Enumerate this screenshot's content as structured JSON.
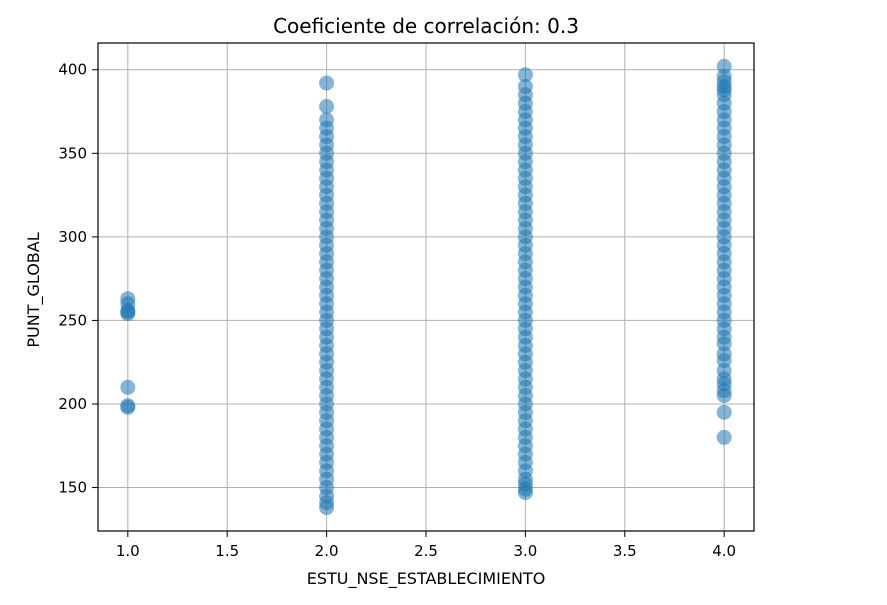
{
  "chart_data": {
    "type": "scatter",
    "title": "Coeficiente de correlación: 0.3",
    "xlabel": "ESTU_NSE_ESTABLECIMIENTO",
    "ylabel": "PUNT_GLOBAL",
    "xlim": [
      0.85,
      4.15
    ],
    "ylim": [
      124,
      416
    ],
    "xticks": [
      1.0,
      1.5,
      2.0,
      2.5,
      3.0,
      3.5,
      4.0
    ],
    "xtick_labels": [
      "1.0",
      "1.5",
      "2.0",
      "2.5",
      "3.0",
      "3.5",
      "4.0"
    ],
    "yticks": [
      150,
      200,
      250,
      300,
      350,
      400
    ],
    "ytick_labels": [
      "150",
      "200",
      "250",
      "300",
      "350",
      "400"
    ],
    "grid": true,
    "marker_color": "#1f77b4",
    "marker_alpha": 0.55,
    "series": [
      {
        "x": [
          1.0,
          1.0,
          1.0,
          1.0,
          1.0,
          1.0,
          1.0,
          1.0
        ],
        "y": [
          198,
          199,
          210,
          254,
          255,
          256,
          260,
          263
        ]
      },
      {
        "x": [
          2.0,
          2.0,
          2.0,
          2.0,
          2.0,
          2.0,
          2.0,
          2.0,
          2.0,
          2.0,
          2.0,
          2.0,
          2.0,
          2.0,
          2.0,
          2.0,
          2.0,
          2.0,
          2.0,
          2.0,
          2.0,
          2.0,
          2.0,
          2.0,
          2.0,
          2.0,
          2.0,
          2.0,
          2.0,
          2.0,
          2.0,
          2.0,
          2.0,
          2.0,
          2.0,
          2.0,
          2.0,
          2.0,
          2.0,
          2.0,
          2.0,
          2.0,
          2.0,
          2.0,
          2.0,
          2.0,
          2.0,
          2.0,
          2.0,
          2.0
        ],
        "y": [
          138,
          141,
          145,
          150,
          155,
          160,
          165,
          170,
          175,
          180,
          185,
          190,
          195,
          200,
          205,
          210,
          215,
          220,
          225,
          230,
          235,
          240,
          245,
          250,
          255,
          260,
          265,
          270,
          275,
          280,
          285,
          290,
          295,
          300,
          305,
          310,
          315,
          320,
          325,
          330,
          335,
          340,
          345,
          350,
          355,
          360,
          365,
          370,
          378,
          392
        ]
      },
      {
        "x": [
          3.0,
          3.0,
          3.0,
          3.0,
          3.0,
          3.0,
          3.0,
          3.0,
          3.0,
          3.0,
          3.0,
          3.0,
          3.0,
          3.0,
          3.0,
          3.0,
          3.0,
          3.0,
          3.0,
          3.0,
          3.0,
          3.0,
          3.0,
          3.0,
          3.0,
          3.0,
          3.0,
          3.0,
          3.0,
          3.0,
          3.0,
          3.0,
          3.0,
          3.0,
          3.0,
          3.0,
          3.0,
          3.0,
          3.0,
          3.0,
          3.0,
          3.0,
          3.0,
          3.0,
          3.0,
          3.0,
          3.0,
          3.0,
          3.0,
          3.0,
          3.0,
          3.0
        ],
        "y": [
          147,
          149,
          152,
          155,
          160,
          165,
          170,
          175,
          180,
          185,
          190,
          195,
          200,
          205,
          210,
          215,
          220,
          225,
          230,
          235,
          240,
          245,
          250,
          255,
          260,
          265,
          270,
          275,
          280,
          285,
          290,
          295,
          300,
          305,
          310,
          315,
          320,
          325,
          330,
          335,
          340,
          345,
          350,
          355,
          360,
          365,
          370,
          375,
          380,
          385,
          390,
          397
        ]
      },
      {
        "x": [
          4.0,
          4.0,
          4.0,
          4.0,
          4.0,
          4.0,
          4.0,
          4.0,
          4.0,
          4.0,
          4.0,
          4.0,
          4.0,
          4.0,
          4.0,
          4.0,
          4.0,
          4.0,
          4.0,
          4.0,
          4.0,
          4.0,
          4.0,
          4.0,
          4.0,
          4.0,
          4.0,
          4.0,
          4.0,
          4.0,
          4.0,
          4.0,
          4.0,
          4.0,
          4.0,
          4.0,
          4.0,
          4.0,
          4.0,
          4.0,
          4.0,
          4.0,
          4.0,
          4.0,
          4.0
        ],
        "y": [
          180,
          195,
          205,
          208,
          212,
          215,
          220,
          226,
          230,
          236,
          240,
          245,
          250,
          255,
          260,
          265,
          270,
          275,
          280,
          285,
          290,
          295,
          300,
          305,
          310,
          315,
          320,
          325,
          330,
          335,
          340,
          345,
          350,
          355,
          360,
          365,
          370,
          375,
          380,
          385,
          388,
          390,
          393,
          396,
          402
        ]
      }
    ]
  }
}
